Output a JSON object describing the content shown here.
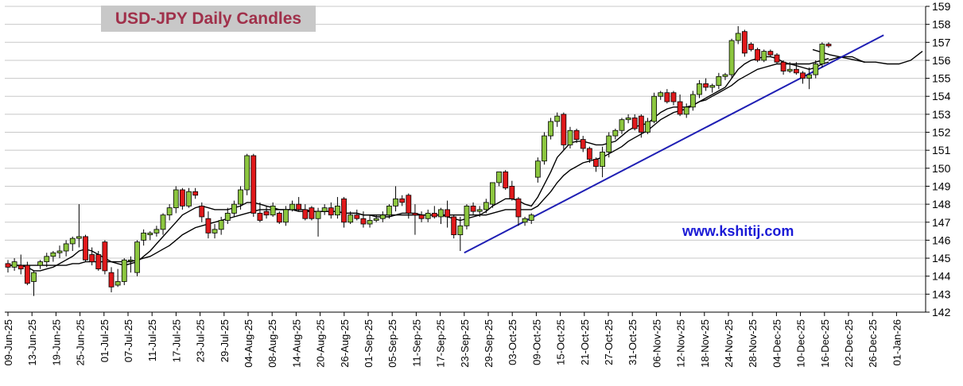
{
  "chart_data": {
    "type": "candlestick",
    "title": "USD-JPY Daily Candles",
    "watermark": "www.kshitij.com",
    "y_axis": {
      "min": 142,
      "max": 159,
      "step": 1,
      "position": "right",
      "tick_labels": [
        "142",
        "143",
        "144",
        "145",
        "146",
        "147",
        "148",
        "149",
        "150",
        "151",
        "152",
        "153",
        "154",
        "155",
        "156",
        "157",
        "158",
        "159"
      ]
    },
    "x_axis": {
      "tick_labels": [
        "09-Jun-25",
        "13-Jun-25",
        "19-Jun-25",
        "25-Jun-25",
        "01-Jul-25",
        "07-Jul-25",
        "11-Jul-25",
        "17-Jul-25",
        "23-Jul-25",
        "29-Jul-25",
        "04-Aug-25",
        "08-Aug-25",
        "14-Aug-25",
        "20-Aug-25",
        "26-Aug-25",
        "01-Sep-25",
        "05-Sep-25",
        "11-Sep-25",
        "17-Sep-25",
        "23-Sep-25",
        "29-Sep-25",
        "03-Oct-25",
        "09-Oct-25",
        "15-Oct-25",
        "21-Oct-25",
        "27-Oct-25",
        "31-Oct-25",
        "06-Nov-25",
        "12-Nov-25",
        "18-Nov-25",
        "24-Nov-25",
        "28-Nov-25",
        "04-Dec-25",
        "10-Dec-25",
        "16-Dec-25",
        "22-Dec-25",
        "26-Dec-25",
        "01-Jan-26"
      ]
    },
    "grid": true,
    "colors": {
      "up": "#8cc63f",
      "down": "#e0191b",
      "ma": "#000000",
      "trendline": "#1f1fb4",
      "grid": "#c8c8c8",
      "title_bg": "#c8c8c8",
      "title_text": "#a0304a",
      "watermark": "#1a1ad6"
    },
    "candles": [
      {
        "o": 144.7,
        "h": 144.9,
        "l": 144.2,
        "c": 144.5
      },
      {
        "o": 144.5,
        "h": 145.0,
        "l": 144.3,
        "c": 144.8
      },
      {
        "o": 144.6,
        "h": 145.2,
        "l": 144.1,
        "c": 144.4
      },
      {
        "o": 144.6,
        "h": 144.8,
        "l": 143.5,
        "c": 143.6
      },
      {
        "o": 143.7,
        "h": 144.3,
        "l": 142.9,
        "c": 144.2
      },
      {
        "o": 144.6,
        "h": 144.9,
        "l": 144.4,
        "c": 144.8
      },
      {
        "o": 144.8,
        "h": 145.3,
        "l": 144.5,
        "c": 145.1
      },
      {
        "o": 145.1,
        "h": 145.4,
        "l": 144.8,
        "c": 145.3
      },
      {
        "o": 145.3,
        "h": 145.7,
        "l": 145.0,
        "c": 145.4
      },
      {
        "o": 145.4,
        "h": 146.0,
        "l": 145.1,
        "c": 145.8
      },
      {
        "o": 145.8,
        "h": 146.2,
        "l": 145.4,
        "c": 146.1
      },
      {
        "o": 146.1,
        "h": 148.0,
        "l": 145.6,
        "c": 146.2
      },
      {
        "o": 146.2,
        "h": 146.3,
        "l": 144.8,
        "c": 144.9
      },
      {
        "o": 145.2,
        "h": 145.6,
        "l": 144.6,
        "c": 144.8
      },
      {
        "o": 145.2,
        "h": 145.4,
        "l": 144.3,
        "c": 144.4
      },
      {
        "o": 145.9,
        "h": 146.0,
        "l": 144.1,
        "c": 144.3
      },
      {
        "o": 144.2,
        "h": 144.5,
        "l": 143.1,
        "c": 143.4
      },
      {
        "o": 143.5,
        "h": 144.4,
        "l": 143.4,
        "c": 143.7
      },
      {
        "o": 143.7,
        "h": 145.0,
        "l": 143.5,
        "c": 144.9
      },
      {
        "o": 144.9,
        "h": 145.1,
        "l": 144.2,
        "c": 144.9
      },
      {
        "o": 144.2,
        "h": 146.0,
        "l": 144.0,
        "c": 145.9
      },
      {
        "o": 146.0,
        "h": 146.6,
        "l": 145.7,
        "c": 146.4
      },
      {
        "o": 146.3,
        "h": 146.5,
        "l": 146.0,
        "c": 146.4
      },
      {
        "o": 146.4,
        "h": 146.8,
        "l": 146.2,
        "c": 146.6
      },
      {
        "o": 146.6,
        "h": 147.5,
        "l": 146.3,
        "c": 147.4
      },
      {
        "o": 147.4,
        "h": 148.0,
        "l": 147.1,
        "c": 147.8
      },
      {
        "o": 147.8,
        "h": 149.0,
        "l": 147.5,
        "c": 148.8
      },
      {
        "o": 148.8,
        "h": 148.9,
        "l": 147.7,
        "c": 147.9
      },
      {
        "o": 147.9,
        "h": 148.9,
        "l": 147.8,
        "c": 148.7
      },
      {
        "o": 148.7,
        "h": 148.9,
        "l": 148.3,
        "c": 148.5
      },
      {
        "o": 147.9,
        "h": 148.1,
        "l": 147.0,
        "c": 147.3
      },
      {
        "o": 147.2,
        "h": 147.6,
        "l": 146.1,
        "c": 146.4
      },
      {
        "o": 146.4,
        "h": 146.9,
        "l": 146.1,
        "c": 146.6
      },
      {
        "o": 146.6,
        "h": 147.3,
        "l": 146.3,
        "c": 147.1
      },
      {
        "o": 147.1,
        "h": 147.8,
        "l": 146.9,
        "c": 147.5
      },
      {
        "o": 147.5,
        "h": 148.2,
        "l": 147.3,
        "c": 148.0
      },
      {
        "o": 148.0,
        "h": 149.0,
        "l": 147.7,
        "c": 148.8
      },
      {
        "o": 148.8,
        "h": 150.8,
        "l": 148.5,
        "c": 150.7
      },
      {
        "o": 150.7,
        "h": 150.8,
        "l": 147.3,
        "c": 147.5
      },
      {
        "o": 147.5,
        "h": 148.1,
        "l": 147.0,
        "c": 147.1
      },
      {
        "o": 147.6,
        "h": 147.9,
        "l": 147.2,
        "c": 147.4
      },
      {
        "o": 147.4,
        "h": 148.1,
        "l": 147.3,
        "c": 147.9
      },
      {
        "o": 147.5,
        "h": 147.6,
        "l": 146.9,
        "c": 147.0
      },
      {
        "o": 147.0,
        "h": 147.9,
        "l": 146.8,
        "c": 147.7
      },
      {
        "o": 147.7,
        "h": 148.2,
        "l": 147.6,
        "c": 148.0
      },
      {
        "o": 148.0,
        "h": 148.4,
        "l": 147.6,
        "c": 147.7
      },
      {
        "o": 147.7,
        "h": 148.0,
        "l": 147.1,
        "c": 147.2
      },
      {
        "o": 147.8,
        "h": 147.9,
        "l": 147.1,
        "c": 147.2
      },
      {
        "o": 147.2,
        "h": 147.8,
        "l": 146.2,
        "c": 147.6
      },
      {
        "o": 147.6,
        "h": 148.0,
        "l": 147.4,
        "c": 147.8
      },
      {
        "o": 147.8,
        "h": 148.1,
        "l": 147.2,
        "c": 147.4
      },
      {
        "o": 147.4,
        "h": 148.4,
        "l": 147.2,
        "c": 147.9
      },
      {
        "o": 148.3,
        "h": 148.4,
        "l": 146.7,
        "c": 147.0
      },
      {
        "o": 147.0,
        "h": 147.6,
        "l": 146.9,
        "c": 147.4
      },
      {
        "o": 147.4,
        "h": 147.7,
        "l": 147.1,
        "c": 147.2
      },
      {
        "o": 147.2,
        "h": 147.6,
        "l": 146.7,
        "c": 146.9
      },
      {
        "o": 146.9,
        "h": 147.4,
        "l": 146.7,
        "c": 147.1
      },
      {
        "o": 147.1,
        "h": 147.4,
        "l": 147.0,
        "c": 147.2
      },
      {
        "o": 147.2,
        "h": 147.6,
        "l": 147.0,
        "c": 147.4
      },
      {
        "o": 147.4,
        "h": 148.0,
        "l": 147.2,
        "c": 147.9
      },
      {
        "o": 147.9,
        "h": 149.0,
        "l": 147.6,
        "c": 148.3
      },
      {
        "o": 148.3,
        "h": 148.5,
        "l": 147.9,
        "c": 148.1
      },
      {
        "o": 148.5,
        "h": 148.6,
        "l": 147.2,
        "c": 147.5
      },
      {
        "o": 147.5,
        "h": 148.0,
        "l": 146.3,
        "c": 147.4
      },
      {
        "o": 147.4,
        "h": 147.6,
        "l": 147.0,
        "c": 147.2
      },
      {
        "o": 147.2,
        "h": 147.7,
        "l": 147.0,
        "c": 147.5
      },
      {
        "o": 147.5,
        "h": 147.9,
        "l": 147.2,
        "c": 147.3
      },
      {
        "o": 147.3,
        "h": 147.8,
        "l": 146.9,
        "c": 147.7
      },
      {
        "o": 147.7,
        "h": 148.2,
        "l": 146.7,
        "c": 147.3
      },
      {
        "o": 147.3,
        "h": 147.4,
        "l": 146.1,
        "c": 146.3
      },
      {
        "o": 146.3,
        "h": 147.3,
        "l": 145.4,
        "c": 146.8
      },
      {
        "o": 146.8,
        "h": 148.0,
        "l": 146.6,
        "c": 147.9
      },
      {
        "o": 147.9,
        "h": 148.1,
        "l": 147.4,
        "c": 147.6
      },
      {
        "o": 147.6,
        "h": 147.9,
        "l": 147.3,
        "c": 147.7
      },
      {
        "o": 147.7,
        "h": 148.3,
        "l": 147.5,
        "c": 148.1
      },
      {
        "o": 148.0,
        "h": 149.2,
        "l": 147.8,
        "c": 149.2
      },
      {
        "o": 149.2,
        "h": 149.8,
        "l": 149.0,
        "c": 149.8
      },
      {
        "o": 149.8,
        "h": 149.9,
        "l": 148.8,
        "c": 148.9
      },
      {
        "o": 149.0,
        "h": 149.3,
        "l": 148.2,
        "c": 148.3
      },
      {
        "o": 148.3,
        "h": 148.4,
        "l": 146.8,
        "c": 147.3
      },
      {
        "o": 147.0,
        "h": 147.3,
        "l": 146.8,
        "c": 147.2
      },
      {
        "o": 147.1,
        "h": 147.5,
        "l": 146.9,
        "c": 147.4
      },
      {
        "o": 149.5,
        "h": 150.6,
        "l": 149.2,
        "c": 150.4
      },
      {
        "o": 150.4,
        "h": 152.0,
        "l": 150.2,
        "c": 151.8
      },
      {
        "o": 151.8,
        "h": 152.8,
        "l": 151.6,
        "c": 152.6
      },
      {
        "o": 152.6,
        "h": 153.1,
        "l": 152.3,
        "c": 152.9
      },
      {
        "o": 153.0,
        "h": 153.1,
        "l": 151.0,
        "c": 151.3
      },
      {
        "o": 151.3,
        "h": 152.3,
        "l": 151.1,
        "c": 152.1
      },
      {
        "o": 152.1,
        "h": 152.2,
        "l": 151.4,
        "c": 151.6
      },
      {
        "o": 151.6,
        "h": 151.8,
        "l": 150.9,
        "c": 151.1
      },
      {
        "o": 151.1,
        "h": 151.2,
        "l": 150.3,
        "c": 150.5
      },
      {
        "o": 150.5,
        "h": 150.6,
        "l": 149.8,
        "c": 150.1
      },
      {
        "o": 150.1,
        "h": 151.2,
        "l": 149.5,
        "c": 150.9
      },
      {
        "o": 150.9,
        "h": 152.0,
        "l": 150.6,
        "c": 151.8
      },
      {
        "o": 151.8,
        "h": 152.2,
        "l": 151.6,
        "c": 152.1
      },
      {
        "o": 152.1,
        "h": 152.8,
        "l": 151.9,
        "c": 152.7
      },
      {
        "o": 152.7,
        "h": 153.0,
        "l": 152.5,
        "c": 152.8
      },
      {
        "o": 152.8,
        "h": 153.0,
        "l": 152.1,
        "c": 152.2
      },
      {
        "o": 152.9,
        "h": 153.0,
        "l": 151.7,
        "c": 152.0
      },
      {
        "o": 152.0,
        "h": 152.8,
        "l": 151.9,
        "c": 152.6
      },
      {
        "o": 152.6,
        "h": 154.2,
        "l": 152.5,
        "c": 154.0
      },
      {
        "o": 154.0,
        "h": 154.3,
        "l": 153.8,
        "c": 154.2
      },
      {
        "o": 154.2,
        "h": 154.4,
        "l": 153.6,
        "c": 153.7
      },
      {
        "o": 154.2,
        "h": 154.3,
        "l": 153.5,
        "c": 153.7
      },
      {
        "o": 153.7,
        "h": 154.1,
        "l": 152.9,
        "c": 153.0
      },
      {
        "o": 153.0,
        "h": 153.6,
        "l": 152.8,
        "c": 153.4
      },
      {
        "o": 153.4,
        "h": 154.3,
        "l": 153.2,
        "c": 154.1
      },
      {
        "o": 154.1,
        "h": 154.9,
        "l": 153.9,
        "c": 154.7
      },
      {
        "o": 154.7,
        "h": 155.0,
        "l": 154.3,
        "c": 154.5
      },
      {
        "o": 154.5,
        "h": 154.7,
        "l": 154.2,
        "c": 154.6
      },
      {
        "o": 154.6,
        "h": 155.3,
        "l": 154.4,
        "c": 155.1
      },
      {
        "o": 155.1,
        "h": 155.3,
        "l": 154.9,
        "c": 155.2
      },
      {
        "o": 155.2,
        "h": 157.2,
        "l": 155.0,
        "c": 157.1
      },
      {
        "o": 157.1,
        "h": 157.9,
        "l": 156.9,
        "c": 157.5
      },
      {
        "o": 157.6,
        "h": 157.7,
        "l": 156.2,
        "c": 156.4
      },
      {
        "o": 156.9,
        "h": 157.0,
        "l": 156.5,
        "c": 156.6
      },
      {
        "o": 156.6,
        "h": 156.7,
        "l": 155.9,
        "c": 156.0
      },
      {
        "o": 156.0,
        "h": 156.6,
        "l": 155.9,
        "c": 156.5
      },
      {
        "o": 156.5,
        "h": 156.6,
        "l": 156.2,
        "c": 156.3
      },
      {
        "o": 156.3,
        "h": 156.4,
        "l": 155.8,
        "c": 155.9
      },
      {
        "o": 155.9,
        "h": 156.0,
        "l": 155.2,
        "c": 155.4
      },
      {
        "o": 155.4,
        "h": 155.9,
        "l": 155.3,
        "c": 155.5
      },
      {
        "o": 155.5,
        "h": 155.9,
        "l": 155.2,
        "c": 155.3
      },
      {
        "o": 155.3,
        "h": 155.4,
        "l": 154.7,
        "c": 155.0
      },
      {
        "o": 155.0,
        "h": 155.6,
        "l": 154.4,
        "c": 155.2
      },
      {
        "o": 155.2,
        "h": 156.0,
        "l": 155.0,
        "c": 155.8
      },
      {
        "o": 155.8,
        "h": 157.0,
        "l": 155.6,
        "c": 156.9
      },
      {
        "o": 156.9,
        "h": 157.0,
        "l": 156.7,
        "c": 156.8
      }
    ],
    "ma_short": [
      144.6,
      144.6,
      144.6,
      144.5,
      144.3,
      144.3,
      144.4,
      144.5,
      144.7,
      144.9,
      145.1,
      145.4,
      145.5,
      145.4,
      145.2,
      145.0,
      144.8,
      144.7,
      144.6,
      144.7,
      144.8,
      145.1,
      145.4,
      145.8,
      146.2,
      146.6,
      147.0,
      147.4,
      147.6,
      147.8,
      147.9,
      147.8,
      147.7,
      147.7,
      147.7,
      147.8,
      147.9,
      148.1,
      148.1,
      148.0,
      147.9,
      147.8,
      147.7,
      147.7,
      147.7,
      147.6,
      147.6,
      147.6,
      147.6,
      147.6,
      147.6,
      147.6,
      147.5,
      147.5,
      147.5,
      147.4,
      147.4,
      147.3,
      147.3,
      147.3,
      147.4,
      147.5,
      147.5,
      147.5,
      147.4,
      147.4,
      147.4,
      147.4,
      147.3,
      147.2,
      147.1,
      147.2,
      147.3,
      147.4,
      147.6,
      147.9,
      148.1,
      148.3,
      148.3,
      148.2,
      148.0,
      147.9,
      148.4,
      149.1,
      149.8,
      150.6,
      151.0,
      151.4,
      151.5,
      151.5,
      151.4,
      151.3,
      151.3,
      151.4,
      151.5,
      151.8,
      152.1,
      152.3,
      152.4,
      152.5,
      152.8,
      153.1,
      153.3,
      153.4,
      153.4,
      153.4,
      153.5,
      153.7,
      153.9,
      154.1,
      154.3,
      154.5,
      155.0,
      155.5,
      155.8,
      156.0,
      156.1,
      156.2,
      156.2,
      156.1,
      155.9,
      155.8,
      155.7,
      155.6,
      155.5,
      155.6,
      155.8,
      155.9
    ],
    "ma_long": [
      144.6,
      144.6,
      144.6,
      144.6,
      144.6,
      144.6,
      144.6,
      144.6,
      144.6,
      144.6,
      144.7,
      144.7,
      144.8,
      144.8,
      144.8,
      144.8,
      144.8,
      144.8,
      144.8,
      144.8,
      144.9,
      145.0,
      145.1,
      145.3,
      145.5,
      145.7,
      146.0,
      146.3,
      146.5,
      146.7,
      146.8,
      146.9,
      147.0,
      147.1,
      147.2,
      147.3,
      147.4,
      147.5,
      147.6,
      147.7,
      147.7,
      147.7,
      147.7,
      147.7,
      147.7,
      147.7,
      147.7,
      147.6,
      147.6,
      147.6,
      147.6,
      147.6,
      147.5,
      147.5,
      147.5,
      147.4,
      147.4,
      147.4,
      147.4,
      147.4,
      147.4,
      147.4,
      147.4,
      147.4,
      147.4,
      147.4,
      147.4,
      147.4,
      147.4,
      147.4,
      147.4,
      147.4,
      147.4,
      147.4,
      147.4,
      147.5,
      147.6,
      147.7,
      147.7,
      147.7,
      147.7,
      147.7,
      147.9,
      148.3,
      148.7,
      149.2,
      149.6,
      149.9,
      150.1,
      150.3,
      150.4,
      150.5,
      150.6,
      150.8,
      151.0,
      151.2,
      151.5,
      151.7,
      151.9,
      152.1,
      152.4,
      152.7,
      152.9,
      153.1,
      153.2,
      153.3,
      153.5,
      153.7,
      153.8,
      154.0,
      154.2,
      154.4,
      154.6,
      154.9,
      155.1,
      155.3,
      155.5,
      155.6,
      155.7,
      155.8,
      155.8,
      155.8,
      155.8,
      155.8,
      155.8,
      155.9,
      156.0,
      156.1
    ],
    "forecast_line": [
      [
        155.9,
        156.0
      ],
      [
        156.0,
        156.2
      ],
      [
        156.2,
        156.2
      ],
      [
        156.4,
        155.9
      ],
      [
        156.0,
        155.9
      ],
      [
        156.1,
        155.8
      ],
      [
        155.8,
        155.8
      ],
      [
        155.9,
        156.0
      ],
      [
        156.0,
        156.5
      ]
    ],
    "trendline": {
      "start": {
        "date": "23-Sep-25",
        "value": 145.3
      },
      "end": {
        "date": "28-Dec-25",
        "value": 157.4
      }
    }
  }
}
